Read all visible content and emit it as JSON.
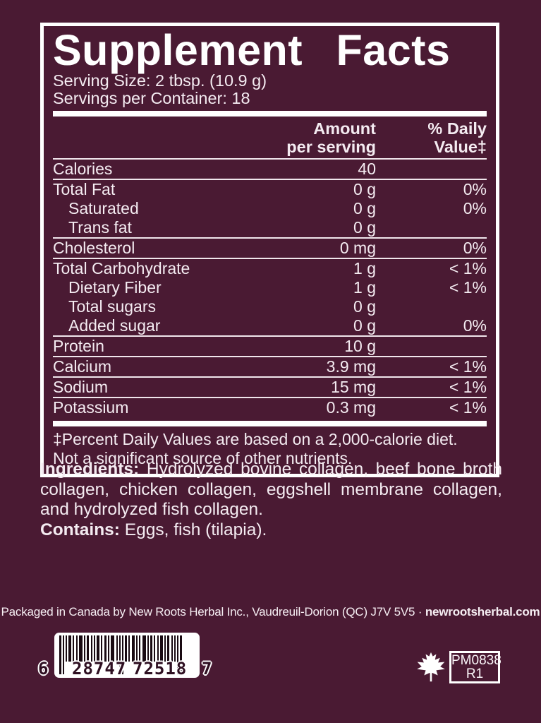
{
  "colors": {
    "background": "#4a1a33",
    "text": "#f4ebf1",
    "rule": "#ffffff"
  },
  "panel": {
    "title": "Supplement Facts",
    "serving_size": "Serving Size: 2 tbsp. (10.9 g)",
    "servings_per_container": "Servings per Container: 18",
    "header": {
      "amount_line1": "Amount",
      "amount_line2": "per serving",
      "dv_line1": "% Daily",
      "dv_line2": "Value‡"
    },
    "rows": [
      {
        "label": "Calories",
        "amount": "40",
        "dv": "",
        "indent": false,
        "sep": false
      },
      {
        "label": "Total Fat",
        "amount": "0 g",
        "dv": "0%",
        "indent": false,
        "sep": true
      },
      {
        "label": "Saturated",
        "amount": "0 g",
        "dv": "0%",
        "indent": true,
        "sep": false
      },
      {
        "label": "Trans fat",
        "amount": "0 g",
        "dv": "",
        "indent": true,
        "sep": false
      },
      {
        "label": "Cholesterol",
        "amount": "0 mg",
        "dv": "0%",
        "indent": false,
        "sep": true
      },
      {
        "label": "Total Carbohydrate",
        "amount": "1 g",
        "dv": "< 1%",
        "indent": false,
        "sep": true
      },
      {
        "label": "Dietary Fiber",
        "amount": "1 g",
        "dv": "< 1%",
        "indent": true,
        "sep": false
      },
      {
        "label": "Total sugars",
        "amount": "0 g",
        "dv": "",
        "indent": true,
        "sep": false
      },
      {
        "label": "Added sugar",
        "amount": "0 g",
        "dv": "0%",
        "indent": true,
        "sep": false
      },
      {
        "label": "Protein",
        "amount": "10 g",
        "dv": "",
        "indent": false,
        "sep": true
      },
      {
        "label": "Calcium",
        "amount": "3.9 mg",
        "dv": "< 1%",
        "indent": false,
        "sep": true
      },
      {
        "label": "Sodium",
        "amount": "15 mg",
        "dv": "< 1%",
        "indent": false,
        "sep": true
      },
      {
        "label": "Potassium",
        "amount": "0.3 mg",
        "dv": "< 1%",
        "indent": false,
        "sep": true
      }
    ],
    "footnote_line1": "‡Percent Daily Values are based on a 2,000-calorie diet.",
    "footnote_line2": "Not a significant source of other nutrients."
  },
  "ingredients": {
    "label": "Ingredients:",
    "text": "Hydrolyzed bovine collagen, beef bone broth collagen, chicken collagen, eggshell membrane collagen, and hydrolyzed fish collagen.",
    "contains_label": "Contains:",
    "contains_text": "Eggs, fish (tilapia)."
  },
  "footer": {
    "packaged_text": "Packaged in Canada by New Roots Herbal Inc., Vaudreuil-Dorion (QC) J7V 5V5 · ",
    "website": "newrootsherbal.com"
  },
  "barcode": {
    "digit_left": "6",
    "digits_group1": "28747",
    "digits_group2": "72518",
    "digit_right": "7"
  },
  "stamp": {
    "line1": "PM0838",
    "line2": "R1"
  }
}
